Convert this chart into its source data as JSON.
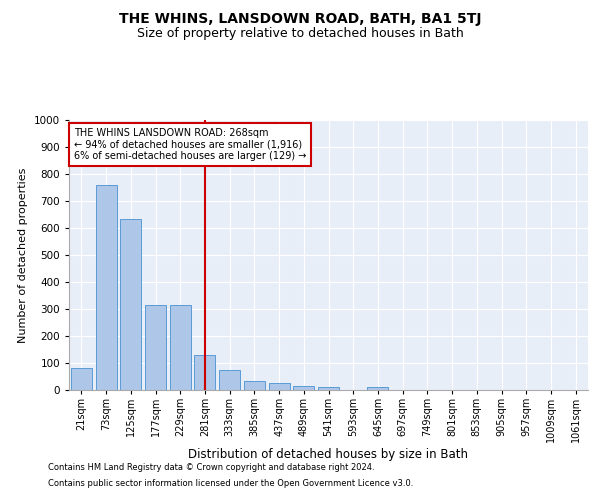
{
  "title": "THE WHINS, LANSDOWN ROAD, BATH, BA1 5TJ",
  "subtitle": "Size of property relative to detached houses in Bath",
  "xlabel": "Distribution of detached houses by size in Bath",
  "ylabel": "Number of detached properties",
  "categories": [
    "21sqm",
    "73sqm",
    "125sqm",
    "177sqm",
    "229sqm",
    "281sqm",
    "333sqm",
    "385sqm",
    "437sqm",
    "489sqm",
    "541sqm",
    "593sqm",
    "645sqm",
    "697sqm",
    "749sqm",
    "801sqm",
    "853sqm",
    "905sqm",
    "957sqm",
    "1009sqm",
    "1061sqm"
  ],
  "values": [
    80,
    760,
    635,
    315,
    315,
    130,
    75,
    35,
    25,
    15,
    10,
    0,
    12,
    0,
    0,
    0,
    0,
    0,
    0,
    0,
    0
  ],
  "bar_color": "#aec6e8",
  "bar_edge_color": "#5b9bd5",
  "vline_index": 5,
  "vline_color": "#cc0000",
  "annotation_text": "THE WHINS LANSDOWN ROAD: 268sqm\n← 94% of detached houses are smaller (1,916)\n6% of semi-detached houses are larger (129) →",
  "annotation_box_color": "#cc0000",
  "ylim": [
    0,
    1000
  ],
  "yticks": [
    0,
    100,
    200,
    300,
    400,
    500,
    600,
    700,
    800,
    900,
    1000
  ],
  "footnote1": "Contains HM Land Registry data © Crown copyright and database right 2024.",
  "footnote2": "Contains public sector information licensed under the Open Government Licence v3.0.",
  "plot_bg_color": "#e8eef7",
  "fig_bg_color": "#ffffff",
  "grid_color": "#ffffff",
  "title_fontsize": 10,
  "subtitle_fontsize": 9,
  "ylabel_fontsize": 8,
  "xlabel_fontsize": 8.5,
  "tick_fontsize": 7,
  "annot_fontsize": 7,
  "footnote_fontsize": 6
}
